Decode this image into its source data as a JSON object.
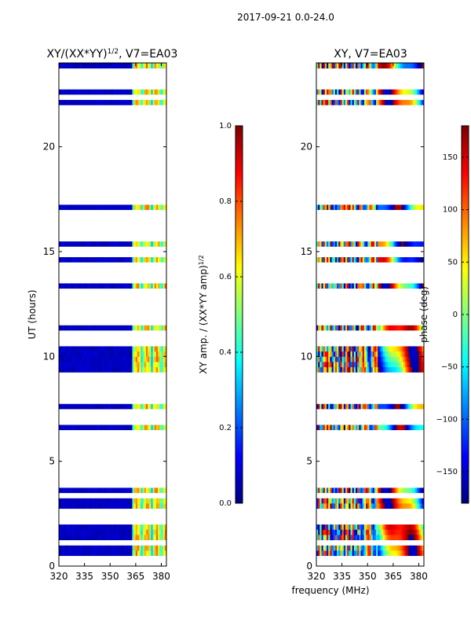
{
  "figure": {
    "suptitle": "2017-09-21 0.0-24.0",
    "shared_xlabel": "frequency (MHz)"
  },
  "chart_data": [
    {
      "type": "heatmap",
      "title": "XY/(XX*YY)^1/2, V7=EA03",
      "title_main": "XY/(XX*YY)",
      "title_sup": "1/2",
      "title_tail": ", V7=EA03",
      "xlabel": "frequency (MHz)",
      "ylabel": "UT (hours)",
      "xlim": [
        320,
        383
      ],
      "ylim": [
        0,
        24
      ],
      "xticks": [
        320,
        335,
        350,
        365,
        380
      ],
      "yticks": [
        0,
        5,
        10,
        15,
        20
      ],
      "colorbar": {
        "label": "XY amp. / (XX*YY amp)^1/2",
        "label_main": "XY amp. / (XX*YY amp)",
        "label_sup": "1/2",
        "range": [
          0.0,
          1.0
        ],
        "ticks": [
          "0.0",
          "0.2",
          "0.4",
          "0.6",
          "0.8",
          "1.0"
        ],
        "colormap": "jet"
      },
      "description": "Low normalized amplitude (~0.05) from 320-363 MHz; vertical bands of elevated amplitude (0.3-0.9) between ~363 and ~381 MHz; horizontal white gaps mark flagged times."
    },
    {
      "type": "heatmap",
      "title": "XY, V7=EA03",
      "xlabel": "frequency (MHz)",
      "ylabel": "",
      "xlim": [
        320,
        383
      ],
      "ylim": [
        0,
        24
      ],
      "xticks": [
        320,
        335,
        350,
        365,
        380
      ],
      "yticks": [
        0,
        5,
        10,
        15,
        20
      ],
      "colorbar": {
        "label": "phase (deg)",
        "range": [
          -180,
          180
        ],
        "ticks": [
          "−150",
          "−100",
          "−50",
          "0",
          "50",
          "100",
          "150"
        ],
        "tick_values": [
          -150,
          -100,
          -50,
          0,
          50,
          100,
          150
        ],
        "colormap": "jet"
      },
      "description": "Wrapped XY phase from -180 to 180 deg; noisy vertical striping below 345 MHz and smoother phase structures above 355 MHz; same flagged time gaps."
    }
  ],
  "flagged_hours": [
    0.25,
    0.45,
    1.05,
    2.05,
    2.25,
    2.5,
    3.4,
    3.8,
    4.05,
    4.2,
    4.35,
    4.6,
    4.85,
    5.2,
    5.35,
    5.55,
    6.0,
    6.4,
    6.85,
    7.1,
    7.3,
    7.85,
    8.1,
    8.35,
    8.55,
    9.0,
    9.2,
    10.55,
    10.95,
    11.05,
    11.15,
    11.6,
    11.8,
    12.25,
    12.5,
    12.85,
    13.2,
    13.7,
    14.0,
    14.45,
    14.9,
    15.05,
    15.2,
    15.55,
    15.75,
    15.95,
    16.25,
    16.45,
    16.65,
    16.8,
    16.95,
    17.3,
    17.5,
    17.75,
    18.0,
    18.2,
    18.3,
    18.6,
    18.75,
    18.9,
    19.05,
    19.25,
    19.75,
    20.2,
    20.4,
    20.75,
    21.0,
    21.1,
    21.4,
    21.6,
    21.75,
    22.3,
    22.45,
    22.9,
    23.05,
    23.5,
    23.7
  ]
}
